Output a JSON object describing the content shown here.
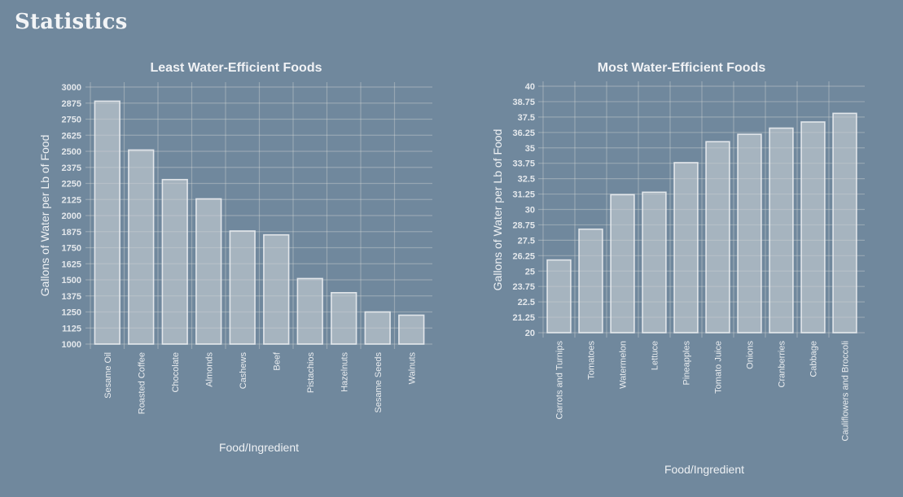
{
  "page": {
    "title": "Statistics",
    "background_color": "#70889d"
  },
  "chart_data": [
    {
      "type": "bar",
      "title": "Least Water-Efficient Foods",
      "xlabel": "Food/Ingredient",
      "ylabel": "Gallons of Water per Lb of Food",
      "ylim": [
        1000,
        3000
      ],
      "yticks": [
        "3000",
        "2875",
        "2750",
        "2625",
        "2500",
        "2375",
        "2250",
        "2125",
        "2000",
        "1875",
        "1750",
        "1625",
        "1500",
        "1375",
        "1250",
        "1125",
        "1000"
      ],
      "grid": true,
      "categories": [
        "Sesame Oil",
        "Roasted Coffee",
        "Chocolate",
        "Almonds",
        "Cashews",
        "Beef",
        "Pistachios",
        "Hazelnuts",
        "Sesame Seeds",
        "Walnuts"
      ],
      "values": [
        2890,
        2510,
        2280,
        2130,
        1880,
        1850,
        1510,
        1400,
        1250,
        1225
      ],
      "bar_color": "#b8c0c8"
    },
    {
      "type": "bar",
      "title": "Most Water-Efficient Foods",
      "xlabel": "Food/Ingredient",
      "ylabel": "Gallons of Water per Lb of Food",
      "ylim": [
        20,
        40
      ],
      "yticks": [
        "40",
        "38.75",
        "37.5",
        "36.25",
        "35",
        "33.75",
        "32.5",
        "31.25",
        "30",
        "28.75",
        "27.5",
        "26.25",
        "25",
        "23.75",
        "22.5",
        "21.25",
        "20"
      ],
      "grid": true,
      "categories": [
        "Carrots and Turnips",
        "Tomatoes",
        "Watermelon",
        "Lettuce",
        "Pineapples",
        "Tomato Juice",
        "Onions",
        "Cranberries",
        "Cabbage",
        "Cauliflowers and Broccoli"
      ],
      "values": [
        25.9,
        28.4,
        31.2,
        31.4,
        33.8,
        35.5,
        36.1,
        36.6,
        37.1,
        37.8
      ],
      "bar_color": "#b8c0c8"
    }
  ]
}
